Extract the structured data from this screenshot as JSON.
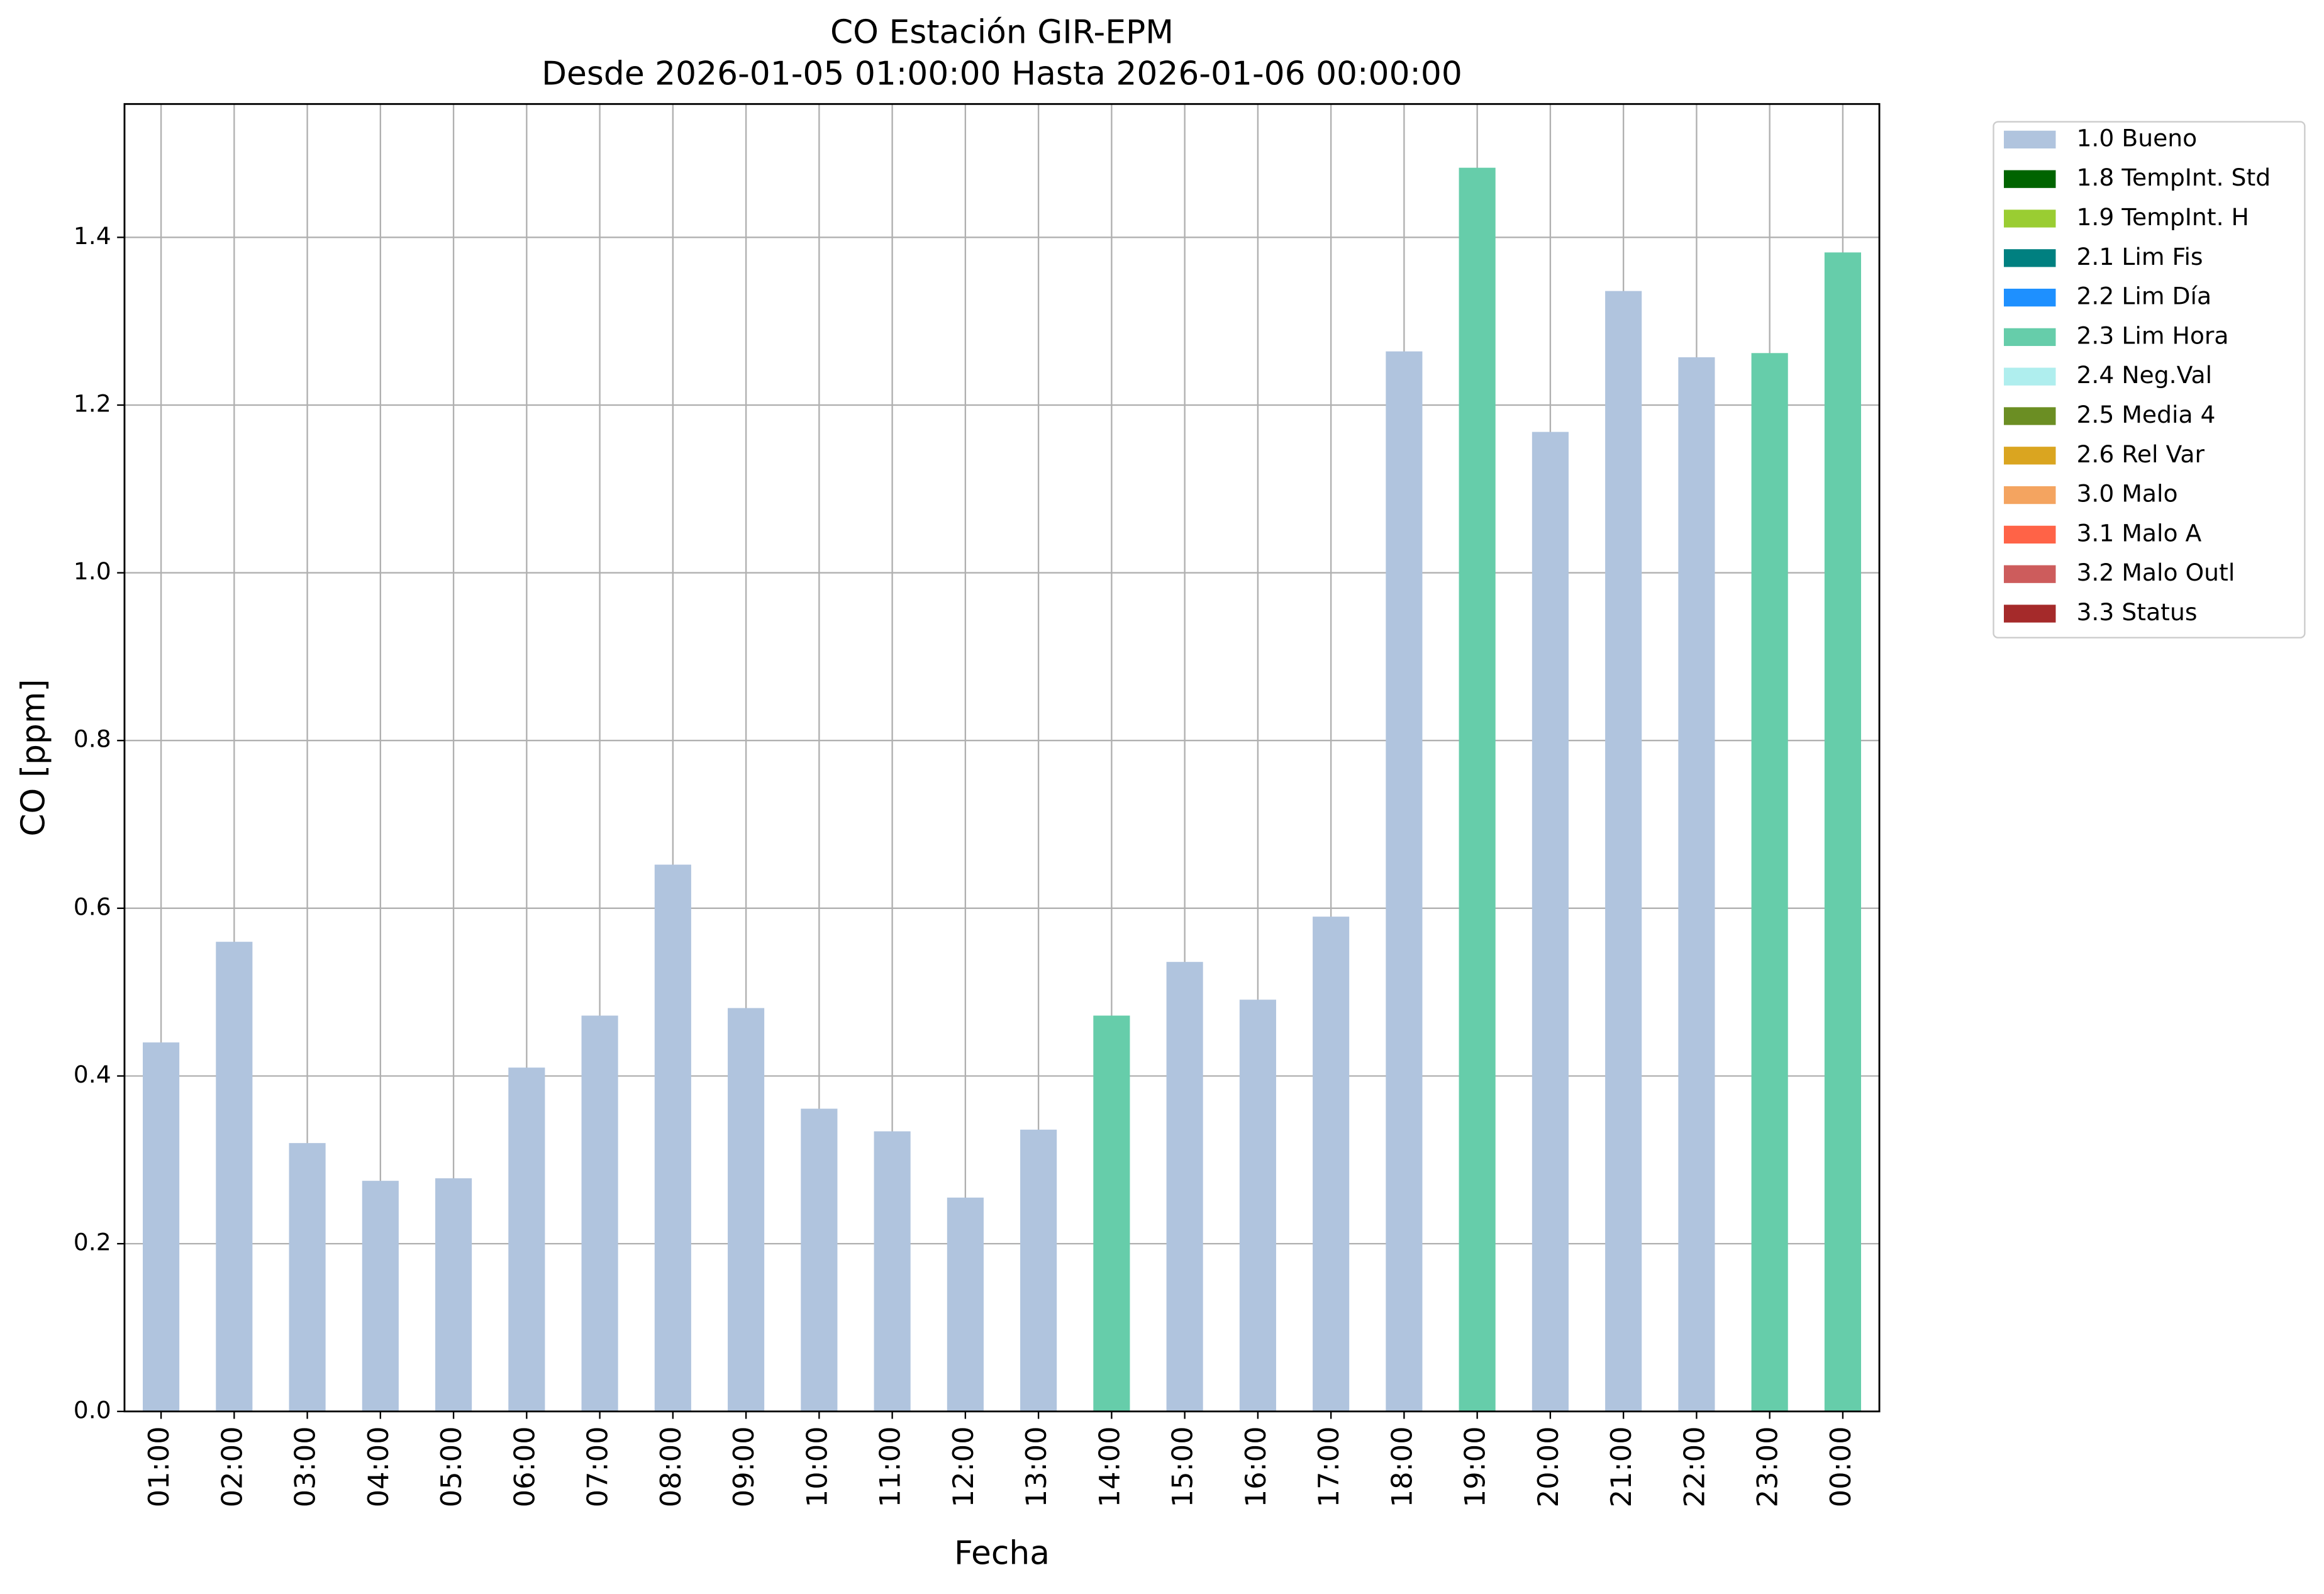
{
  "chart_data": {
    "type": "stacked_bar",
    "title": "CO Estación GIR-EPM",
    "subtitle": "Desde 2026-01-05 01:00:00 Hasta 2026-01-06 00:00:00",
    "x_label": "Fecha",
    "y_label": "CO [ppm]",
    "categories": [
      "01:00",
      "02:00",
      "03:00",
      "04:00",
      "05:00",
      "06:00",
      "07:00",
      "08:00",
      "09:00",
      "10:00",
      "11:00",
      "12:00",
      "13:00",
      "14:00",
      "15:00",
      "16:00",
      "17:00",
      "18:00",
      "19:00",
      "20:00",
      "21:00",
      "22:00",
      "23:00",
      "00:00"
    ],
    "series": [
      {
        "name": "1.0 Bueno",
        "color": "#b0c4de",
        "values": [
          0.44,
          0.56,
          0.32,
          0.275,
          0.278,
          0.41,
          0.472,
          0.652,
          0.481,
          0.361,
          0.334,
          0.255,
          0.336,
          null,
          0.536,
          0.491,
          0.59,
          1.264,
          null,
          1.168,
          1.336,
          1.257,
          null,
          null
        ]
      },
      {
        "name": "1.8 TempInt. Std",
        "color": "#006400",
        "values": [
          null,
          null,
          null,
          null,
          null,
          null,
          null,
          null,
          null,
          null,
          null,
          null,
          null,
          null,
          null,
          null,
          null,
          null,
          null,
          null,
          null,
          null,
          null,
          null
        ]
      },
      {
        "name": "1.9 TempInt. H",
        "color": "#9acd32",
        "values": [
          null,
          null,
          null,
          null,
          null,
          null,
          null,
          null,
          null,
          null,
          null,
          null,
          null,
          null,
          null,
          null,
          null,
          null,
          null,
          null,
          null,
          null,
          null,
          null
        ]
      },
      {
        "name": "2.1 Lim Fis",
        "color": "#008080",
        "values": [
          null,
          null,
          null,
          null,
          null,
          null,
          null,
          null,
          null,
          null,
          null,
          null,
          null,
          null,
          null,
          null,
          null,
          null,
          null,
          null,
          null,
          null,
          null,
          null
        ]
      },
      {
        "name": "2.2 Lim Día",
        "color": "#1e90ff",
        "values": [
          null,
          null,
          null,
          null,
          null,
          null,
          null,
          null,
          null,
          null,
          null,
          null,
          null,
          null,
          null,
          null,
          null,
          null,
          null,
          null,
          null,
          null,
          null,
          null
        ]
      },
      {
        "name": "2.3 Lim Hora",
        "color": "#66cdaa",
        "values": [
          null,
          null,
          null,
          null,
          null,
          null,
          null,
          null,
          null,
          null,
          null,
          null,
          null,
          0.472,
          null,
          null,
          null,
          null,
          1.483,
          null,
          null,
          null,
          1.262,
          1.382
        ]
      },
      {
        "name": "2.4 Neg.Val",
        "color": "#afeeee",
        "values": [
          null,
          null,
          null,
          null,
          null,
          null,
          null,
          null,
          null,
          null,
          null,
          null,
          null,
          null,
          null,
          null,
          null,
          null,
          null,
          null,
          null,
          null,
          null,
          null
        ]
      },
      {
        "name": "2.5 Media 4",
        "color": "#6b8e23",
        "values": [
          null,
          null,
          null,
          null,
          null,
          null,
          null,
          null,
          null,
          null,
          null,
          null,
          null,
          null,
          null,
          null,
          null,
          null,
          null,
          null,
          null,
          null,
          null,
          null
        ]
      },
      {
        "name": "2.6 Rel Var",
        "color": "#daa520",
        "values": [
          null,
          null,
          null,
          null,
          null,
          null,
          null,
          null,
          null,
          null,
          null,
          null,
          null,
          null,
          null,
          null,
          null,
          null,
          null,
          null,
          null,
          null,
          null,
          null
        ]
      },
      {
        "name": "3.0 Malo",
        "color": "#f4a460",
        "values": [
          null,
          null,
          null,
          null,
          null,
          null,
          null,
          null,
          null,
          null,
          null,
          null,
          null,
          null,
          null,
          null,
          null,
          null,
          null,
          null,
          null,
          null,
          null,
          null
        ]
      },
      {
        "name": "3.1 Malo A",
        "color": "#ff6347",
        "values": [
          null,
          null,
          null,
          null,
          null,
          null,
          null,
          null,
          null,
          null,
          null,
          null,
          null,
          null,
          null,
          null,
          null,
          null,
          null,
          null,
          null,
          null,
          null,
          null
        ]
      },
      {
        "name": "3.2 Malo Outl",
        "color": "#cd5c5c",
        "values": [
          null,
          null,
          null,
          null,
          null,
          null,
          null,
          null,
          null,
          null,
          null,
          null,
          null,
          null,
          null,
          null,
          null,
          null,
          null,
          null,
          null,
          null,
          null,
          null
        ]
      },
      {
        "name": "3.3 Status",
        "color": "#a52a2a",
        "values": [
          null,
          null,
          null,
          null,
          null,
          null,
          null,
          null,
          null,
          null,
          null,
          null,
          null,
          null,
          null,
          null,
          null,
          null,
          null,
          null,
          null,
          null,
          null,
          null
        ]
      }
    ],
    "ylim": [
      0,
      1.559
    ],
    "yticks": [
      {
        "value": 0,
        "label": "0.0"
      },
      0.2,
      0.4,
      0.6,
      0.8,
      {
        "value": 1,
        "label": "1.0"
      },
      1.2,
      1.4
    ],
    "grid": true,
    "legend": "outside-right"
  }
}
